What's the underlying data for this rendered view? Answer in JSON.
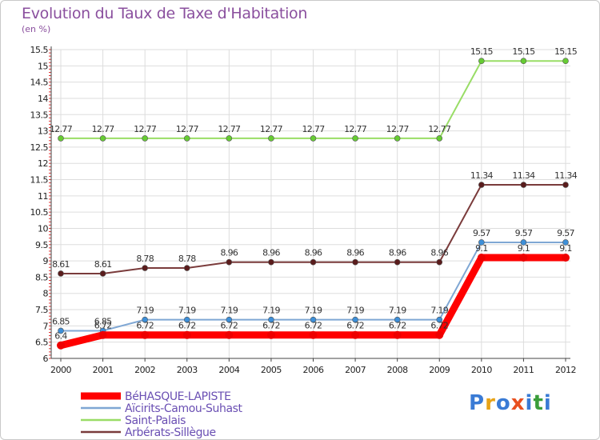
{
  "header": {
    "title": "Evolution du Taux de Taxe d'Habitation",
    "subtitle": "(en %)"
  },
  "logo": {
    "letters": [
      "P",
      "r",
      "o",
      "x",
      "i",
      "t",
      "i"
    ],
    "colors": [
      "#3a7bd5",
      "#e8a317",
      "#3a7bd5",
      "#e8501f",
      "#3a7bd5",
      "#3a9d3a",
      "#3a7bd5"
    ]
  },
  "chart_data": {
    "type": "line",
    "title": "Evolution du Taux de Taxe d'Habitation",
    "ylabel": "(en %)",
    "xlabel": "",
    "x": [
      "2000",
      "2001",
      "2002",
      "2003",
      "2004",
      "2005",
      "2006",
      "2007",
      "2008",
      "2009",
      "2010",
      "2011",
      "2012"
    ],
    "ylim": [
      6,
      15.5
    ],
    "yticks": [
      "6",
      "6.5",
      "7",
      "7.5",
      "8",
      "8.5",
      "9",
      "9.5",
      "10",
      "10.5",
      "11",
      "11.5",
      "12",
      "12.5",
      "13",
      "13.5",
      "14",
      "14.5",
      "15",
      "15.5"
    ],
    "grid": true,
    "legend_position": "bottom-left",
    "series": [
      {
        "name": "BéHASQUE-LAPISTE",
        "color": "#ff0000",
        "marker_color": "#ee0000",
        "values": [
          6.4,
          6.72,
          6.72,
          6.72,
          6.72,
          6.72,
          6.72,
          6.72,
          6.72,
          6.72,
          9.1,
          9.1,
          9.1
        ],
        "labels": [
          "6.4",
          "6.72",
          "6.72",
          "6.72",
          "6.72",
          "6.72",
          "6.72",
          "6.72",
          "6.72",
          "6.72",
          "9.1",
          "9.1",
          "9.1"
        ]
      },
      {
        "name": "Aïcirits-Camou-Suhast",
        "color": "#7fa7d4",
        "marker_color": "#3d8fd8",
        "values": [
          6.85,
          6.85,
          7.19,
          7.19,
          7.19,
          7.19,
          7.19,
          7.19,
          7.19,
          7.19,
          9.57,
          9.57,
          9.57
        ],
        "labels": [
          "6.85",
          "6.85",
          "7.19",
          "7.19",
          "7.19",
          "7.19",
          "7.19",
          "7.19",
          "7.19",
          "7.19",
          "9.57",
          "9.57",
          "9.57"
        ]
      },
      {
        "name": "Saint-Palais",
        "color": "#99dd66",
        "marker_color": "#66cc33",
        "values": [
          12.77,
          12.77,
          12.77,
          12.77,
          12.77,
          12.77,
          12.77,
          12.77,
          12.77,
          12.77,
          15.15,
          15.15,
          15.15
        ],
        "labels": [
          "12.77",
          "12.77",
          "12.77",
          "12.77",
          "12.77",
          "12.77",
          "12.77",
          "12.77",
          "12.77",
          "12.77",
          "15.15",
          "15.15",
          "15.15"
        ]
      },
      {
        "name": "Arbérats-Sillègue",
        "color": "#7a3b3b",
        "marker_color": "#5a1c1c",
        "values": [
          8.61,
          8.61,
          8.78,
          8.78,
          8.96,
          8.96,
          8.96,
          8.96,
          8.96,
          8.96,
          11.34,
          11.34,
          11.34
        ],
        "labels": [
          "8.61",
          "8.61",
          "8.78",
          "8.78",
          "8.96",
          "8.96",
          "8.96",
          "8.96",
          "8.96",
          "8.96",
          "11.34",
          "11.34",
          "11.34"
        ]
      }
    ]
  }
}
